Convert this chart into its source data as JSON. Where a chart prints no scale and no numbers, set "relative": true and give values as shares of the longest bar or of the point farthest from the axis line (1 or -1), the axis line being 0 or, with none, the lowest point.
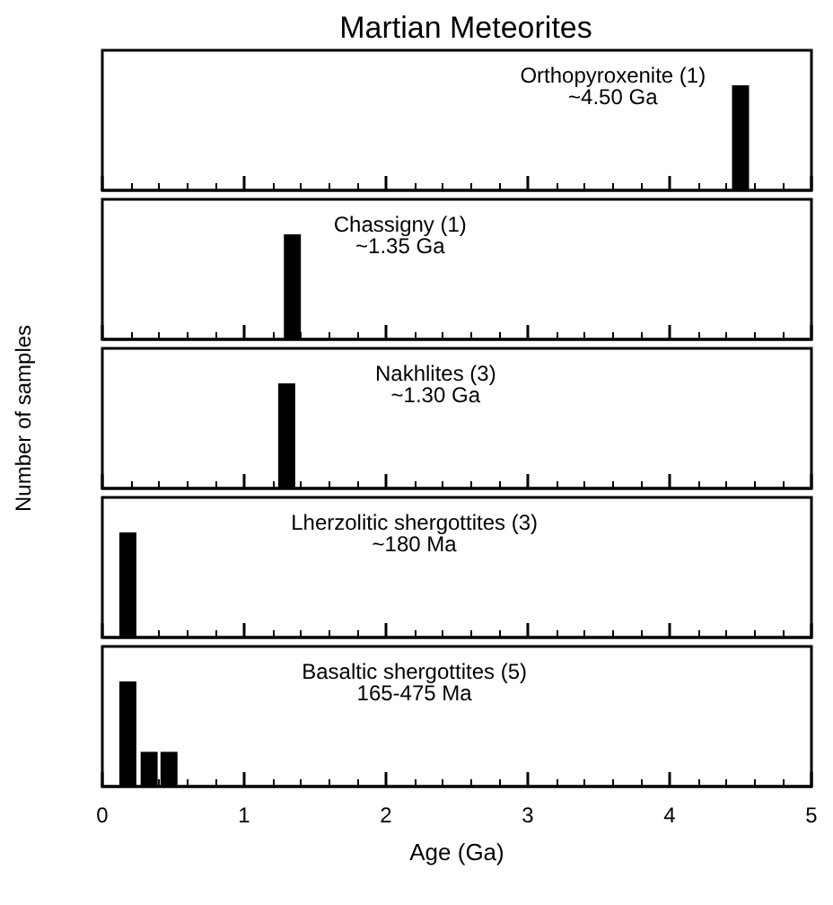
{
  "chart_data": [
    {
      "type": "bar",
      "title": "Martian Meteorites",
      "relative": true,
      "x": [
        4.5
      ],
      "values": [
        1
      ],
      "color": "#000000",
      "xlim": [
        0,
        5
      ],
      "xticks": [
        0,
        1,
        2,
        3,
        4,
        5
      ],
      "tick_labels": false,
      "grid": false,
      "annotations": [
        "Orthopyroxenite (1)",
        "~4.50 Ga"
      ]
    },
    {
      "type": "bar",
      "relative": true,
      "x": [
        1.34
      ],
      "values": [
        1
      ],
      "color": "#000000",
      "xlim": [
        0,
        5
      ],
      "xticks": [
        0,
        1,
        2,
        3,
        4,
        5
      ],
      "tick_labels": false,
      "grid": false,
      "annotations": [
        "Chassigny (1)",
        "~1.35 Ga"
      ]
    },
    {
      "type": "bar",
      "ylabel": "Number of samples",
      "relative": true,
      "x": [
        1.3
      ],
      "values": [
        1
      ],
      "color": "#000000",
      "xlim": [
        0,
        5
      ],
      "xticks": [
        0,
        1,
        2,
        3,
        4,
        5
      ],
      "tick_labels": false,
      "grid": false,
      "annotations": [
        "Nakhlites (3)",
        "~1.30 Ga"
      ]
    },
    {
      "type": "bar",
      "relative": true,
      "x": [
        0.18
      ],
      "values": [
        1
      ],
      "color": "#000000",
      "xlim": [
        0,
        5
      ],
      "xticks": [
        0,
        1,
        2,
        3,
        4,
        5
      ],
      "tick_labels": false,
      "grid": false,
      "annotations": [
        "Lherzolitic shergottites (3)",
        "~180 Ma"
      ]
    },
    {
      "type": "bar",
      "xlabel": "Age (Ga)",
      "relative": true,
      "x": [
        0.18,
        0.33,
        0.47
      ],
      "values": [
        1,
        0.33,
        0.33
      ],
      "color": "#000000",
      "xlim": [
        0,
        5
      ],
      "xticks": [
        0,
        1,
        2,
        3,
        4,
        5
      ],
      "tick_labels": "x",
      "grid": false,
      "annotations": [
        "Basaltic shergottites (5)",
        "165-475 Ma"
      ]
    }
  ]
}
